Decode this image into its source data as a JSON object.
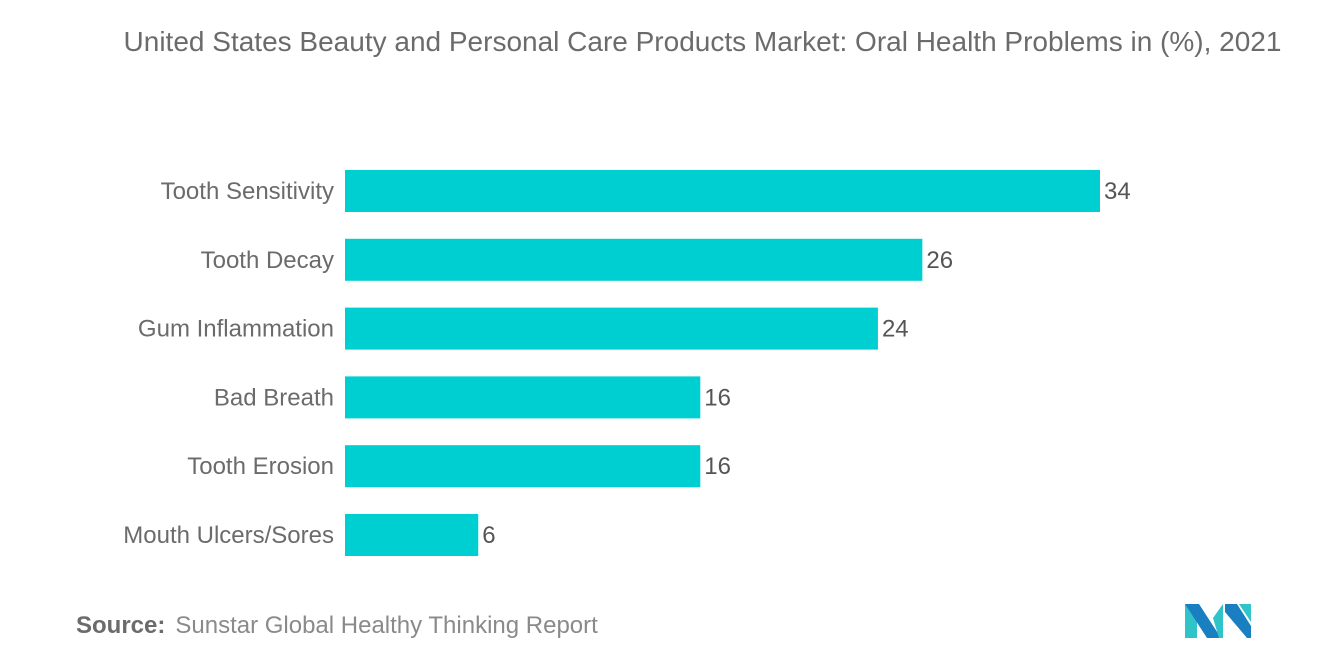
{
  "chart_data": {
    "type": "bar",
    "orientation": "horizontal",
    "title": "United States Beauty and Personal Care Products Market: Oral Health Problems in (%), 2021",
    "categories": [
      "Tooth Sensitivity",
      "Tooth Decay",
      "Gum Inflammation",
      "Bad Breath",
      "Tooth Erosion",
      "Mouth Ulcers/Sores"
    ],
    "values": [
      34,
      26,
      24,
      16,
      16,
      6
    ],
    "xlabel": "",
    "ylabel": "",
    "xlim": [
      0,
      34
    ],
    "grid": false,
    "data_labels": true,
    "bar_color": "#00cfd1"
  },
  "source": {
    "label": "Source:",
    "text": "Sunstar Global Healthy Thinking Report"
  },
  "logo": {
    "colors": [
      "#1a7fc1",
      "#2ec4c9"
    ]
  }
}
